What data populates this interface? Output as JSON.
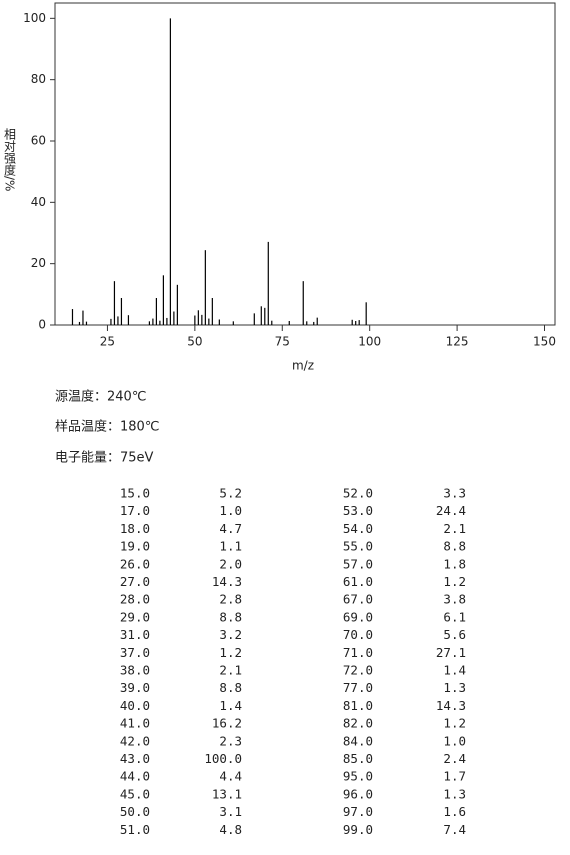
{
  "chart_data": {
    "type": "stick",
    "xlabel": "m/z",
    "ylabel": "相对强度/%",
    "x": [
      15,
      17,
      18,
      19,
      26,
      27,
      28,
      29,
      31,
      37,
      38,
      39,
      40,
      41,
      42,
      43,
      44,
      45,
      50,
      51,
      52,
      53,
      54,
      55,
      57,
      61,
      67,
      69,
      70,
      71,
      72,
      77,
      81,
      82,
      84,
      85,
      95,
      96,
      97,
      99
    ],
    "values": [
      5.2,
      1.0,
      4.7,
      1.1,
      2.0,
      14.3,
      2.8,
      8.8,
      3.2,
      1.2,
      2.1,
      8.8,
      1.4,
      16.2,
      2.3,
      100.0,
      4.4,
      13.1,
      3.1,
      4.8,
      3.3,
      24.4,
      2.1,
      8.8,
      1.8,
      1.2,
      3.8,
      6.1,
      5.6,
      27.1,
      1.4,
      1.3,
      14.3,
      1.2,
      1.0,
      2.4,
      1.7,
      1.3,
      1.6,
      7.4
    ],
    "color": "#000000",
    "xlim": [
      10,
      153
    ],
    "xticks": [
      25,
      50,
      75,
      100,
      125,
      150
    ],
    "ylim": [
      0,
      105
    ],
    "yticks": [
      0,
      20,
      40,
      60,
      80,
      100
    ]
  },
  "conditions": [
    "源温度：240℃",
    "样品温度：180℃",
    "电子能量：75eV"
  ],
  "table": {
    "rows": [
      [
        "15.0",
        "5.2"
      ],
      [
        "17.0",
        "1.0"
      ],
      [
        "18.0",
        "4.7"
      ],
      [
        "19.0",
        "1.1"
      ],
      [
        "26.0",
        "2.0"
      ],
      [
        "27.0",
        "14.3"
      ],
      [
        "28.0",
        "2.8"
      ],
      [
        "29.0",
        "8.8"
      ],
      [
        "31.0",
        "3.2"
      ],
      [
        "37.0",
        "1.2"
      ],
      [
        "38.0",
        "2.1"
      ],
      [
        "39.0",
        "8.8"
      ],
      [
        "40.0",
        "1.4"
      ],
      [
        "41.0",
        "16.2"
      ],
      [
        "42.0",
        "2.3"
      ],
      [
        "43.0",
        "100.0"
      ],
      [
        "44.0",
        "4.4"
      ],
      [
        "45.0",
        "13.1"
      ],
      [
        "50.0",
        "3.1"
      ],
      [
        "51.0",
        "4.8"
      ],
      [
        "52.0",
        "3.3"
      ],
      [
        "53.0",
        "24.4"
      ],
      [
        "54.0",
        "2.1"
      ],
      [
        "55.0",
        "8.8"
      ],
      [
        "57.0",
        "1.8"
      ],
      [
        "61.0",
        "1.2"
      ],
      [
        "67.0",
        "3.8"
      ],
      [
        "69.0",
        "6.1"
      ],
      [
        "70.0",
        "5.6"
      ],
      [
        "71.0",
        "27.1"
      ],
      [
        "72.0",
        "1.4"
      ],
      [
        "77.0",
        "1.3"
      ],
      [
        "81.0",
        "14.3"
      ],
      [
        "82.0",
        "1.2"
      ],
      [
        "84.0",
        "1.0"
      ],
      [
        "85.0",
        "2.4"
      ],
      [
        "95.0",
        "1.7"
      ],
      [
        "96.0",
        "1.3"
      ],
      [
        "97.0",
        "1.6"
      ],
      [
        "99.0",
        "7.4"
      ]
    ]
  }
}
